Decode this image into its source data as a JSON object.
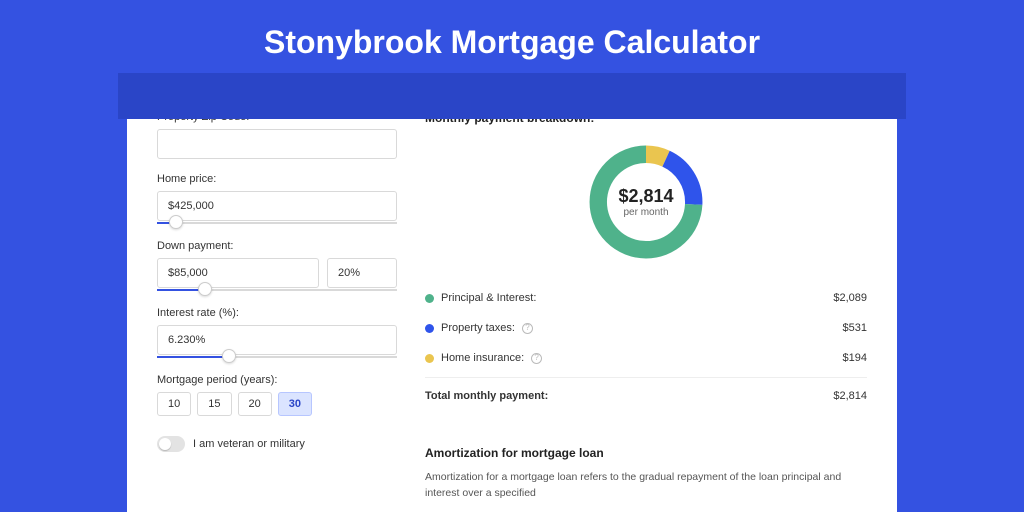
{
  "page": {
    "title": "Stonybrook Mortgage Calculator",
    "background_color": "#3452e1",
    "banner_color": "#2a45c7",
    "card_background": "#ffffff"
  },
  "form": {
    "zip": {
      "label": "Property Zip Code:",
      "value": ""
    },
    "home_price": {
      "label": "Home price:",
      "value": "$425,000",
      "slider_fill_pct": 8
    },
    "down_payment": {
      "label": "Down payment:",
      "value": "$85,000",
      "pct_value": "20%",
      "slider_fill_pct": 20
    },
    "interest_rate": {
      "label": "Interest rate (%):",
      "value": "6.230%",
      "slider_fill_pct": 30
    },
    "period": {
      "label": "Mortgage period (years):",
      "options": [
        "10",
        "15",
        "20",
        "30"
      ],
      "selected": "30"
    },
    "veteran": {
      "label": "I am veteran or military",
      "on": false
    }
  },
  "breakdown": {
    "title": "Monthly payment breakdown:",
    "donut": {
      "amount": "$2,814",
      "subtext": "per month",
      "slices": [
        {
          "key": "principal_interest",
          "value": 2089,
          "pct": 74.2,
          "color": "#4fb28b"
        },
        {
          "key": "property_taxes",
          "value": 531,
          "pct": 18.9,
          "color": "#2f54eb"
        },
        {
          "key": "home_insurance",
          "value": 194,
          "pct": 6.9,
          "color": "#eac54f"
        }
      ],
      "thickness": 18
    },
    "legend": [
      {
        "label": "Principal & Interest:",
        "value": "$2,089",
        "color": "#4fb28b",
        "info": false
      },
      {
        "label": "Property taxes:",
        "value": "$531",
        "color": "#2f54eb",
        "info": true
      },
      {
        "label": "Home insurance:",
        "value": "$194",
        "color": "#eac54f",
        "info": true
      }
    ],
    "total": {
      "label": "Total monthly payment:",
      "value": "$2,814"
    }
  },
  "amortization": {
    "title": "Amortization for mortgage loan",
    "text": "Amortization for a mortgage loan refers to the gradual repayment of the loan principal and interest over a specified"
  }
}
